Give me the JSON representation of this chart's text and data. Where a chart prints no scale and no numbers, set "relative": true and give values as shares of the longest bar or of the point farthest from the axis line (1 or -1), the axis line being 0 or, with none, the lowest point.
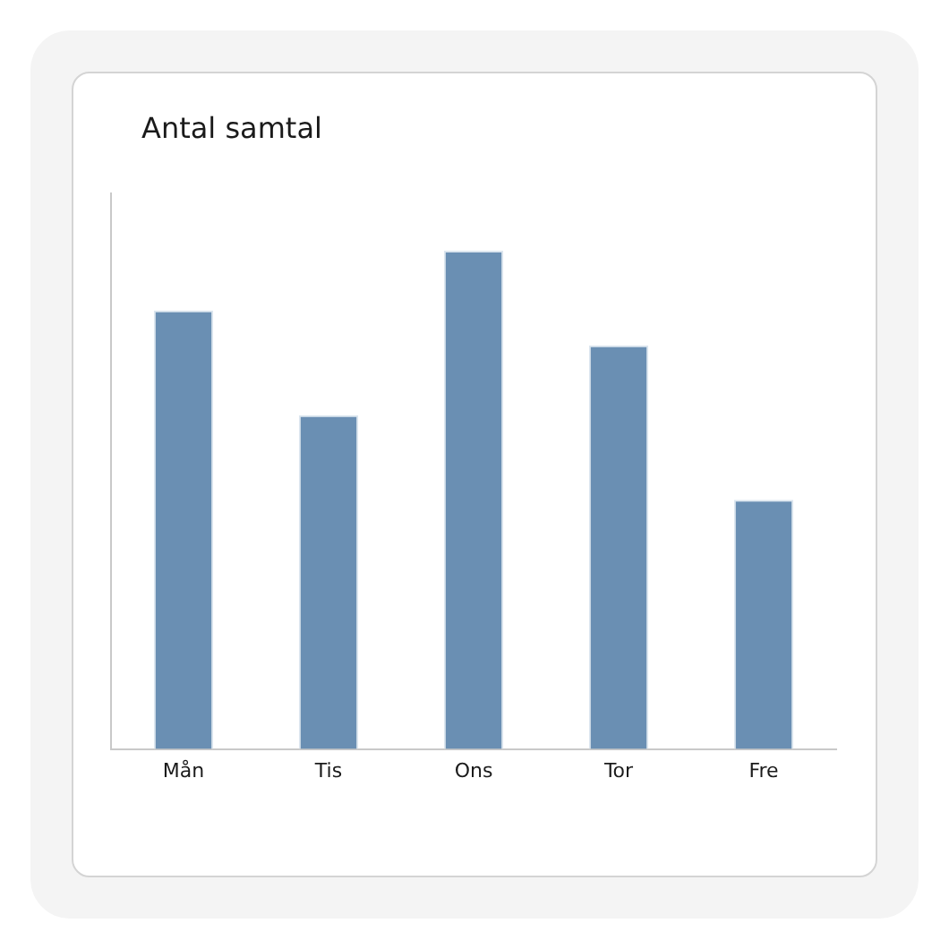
{
  "chart_data": {
    "type": "bar",
    "title": "Antal samtal",
    "categories": [
      "Mån",
      "Tis",
      "Ons",
      "Tor",
      "Fre"
    ],
    "values": [
      0.88,
      0.67,
      1,
      0.81,
      0.5
    ],
    "color": "#6a8fb3",
    "relative": true
  }
}
